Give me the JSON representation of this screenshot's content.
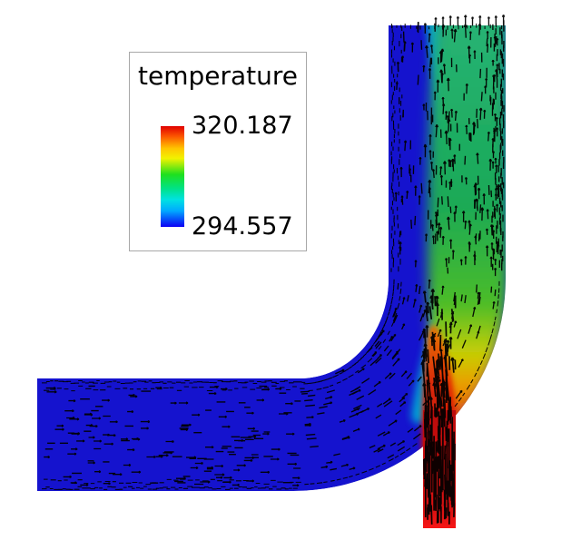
{
  "scene": {
    "description": "CFD pseudocolor temperature field of a 90-degree elbow duct with velocity vector glyphs",
    "background": "#ffffff"
  },
  "legend": {
    "title": "temperature",
    "max_label": "320.187",
    "min_label": "294.557",
    "border_color": "#a8a8a8",
    "colorbar_stops": [
      [
        "0",
        "#e10000"
      ],
      [
        "0.10",
        "#fb5500"
      ],
      [
        "0.22",
        "#ffc400"
      ],
      [
        "0.32",
        "#f2f200"
      ],
      [
        "0.48",
        "#1ee01e"
      ],
      [
        "0.62",
        "#00e287"
      ],
      [
        "0.73",
        "#00e2e2"
      ],
      [
        "0.84",
        "#00aaff"
      ],
      [
        "1",
        "#0b00f4"
      ]
    ]
  },
  "field_colors": {
    "cold_fluid": "#1513ce",
    "vector_glyphs": "#000000",
    "cyan_mixing_band": "#00bcd4",
    "plume_gradient": [
      [
        "0",
        "#27b375"
      ],
      [
        "0.45",
        "#1aa957"
      ],
      [
        "0.70",
        "#4abc28"
      ],
      [
        "0.82",
        "#c6cf06"
      ],
      [
        "0.90",
        "#ec9c00"
      ],
      [
        "1",
        "#e03a10"
      ]
    ],
    "jet_core_gradient": [
      [
        "0",
        "#ef7a00"
      ],
      [
        "0.4",
        "#e42800"
      ],
      [
        "1",
        "#cc0707"
      ]
    ],
    "inlet_pipe_gradient": [
      [
        "0",
        "#bb0b0b"
      ],
      [
        "0.85",
        "#d91111"
      ],
      [
        "1",
        "#f71616"
      ]
    ]
  },
  "chart_data": {
    "type": "heatmap",
    "title": "temperature",
    "field": "temperature",
    "value_range": [
      294.557,
      320.187
    ],
    "colormap": "rainbow (blue = 294.557 min, red = 320.187 max)",
    "legend_position": "top-left",
    "overlays": [
      "velocity vector glyphs (small black arrows following the flow)"
    ],
    "geometry": "90-degree elbow: horizontal inlet duct on the left turns upward into a vertical riser on the right; a narrow hot inlet pipe joins from the bottom of the bend",
    "regions": [
      {
        "name": "horizontal inlet duct",
        "approx_temperature": 295,
        "appearance": "uniform dark blue, rightward arrows, dense arrow rows along both walls"
      },
      {
        "name": "elbow bend",
        "approx_temperature": 295,
        "appearance": "dark blue, arrows turning 90 degrees upward"
      },
      {
        "name": "bottom hot inlet pipe",
        "approx_temperature": 320,
        "appearance": "red, nearly black from dense upward arrows, bright red inlet edge at bottom"
      },
      {
        "name": "mixing plume along right wall of riser",
        "approx_temperature": "300-315",
        "appearance": "red to orange to yellow to green rising jet hugging the right wall"
      },
      {
        "name": "riser outlet (top)",
        "approx_temperature": "295-303",
        "appearance": "blue left half grading through teal to green right half, arrows exiting above the rim"
      }
    ]
  }
}
